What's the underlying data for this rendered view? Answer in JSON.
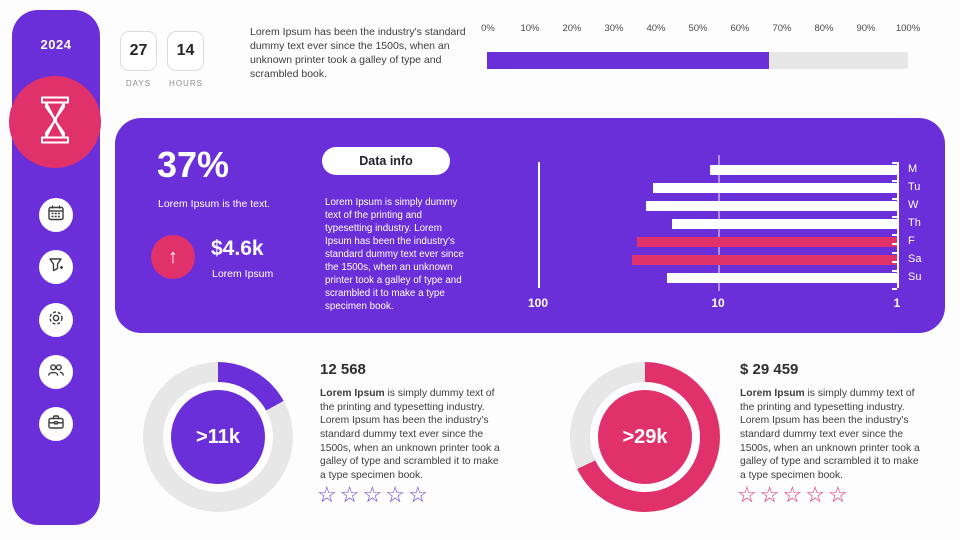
{
  "sidebar": {
    "year": "2024",
    "badge_icon": "hourglass",
    "nav_icons": [
      "calendar",
      "filter",
      "settings",
      "users",
      "briefcase"
    ]
  },
  "countdown": {
    "days_value": "27",
    "days_label": "DAYS",
    "hours_value": "14",
    "hours_label": "HOURS"
  },
  "intro_text": "Lorem Ipsum has been the industry's standard dummy text ever since the 1500s, when an unknown printer took a galley  of type and scrambled book.",
  "panel": {
    "percent": "37%",
    "percent_caption": "Lorem Ipsum is the text.",
    "arrow_icon": "up-arrow",
    "kpi_value": "$4.6k",
    "kpi_caption": "Lorem Ipsum",
    "button_label": "Data info",
    "description": "Lorem Ipsum is simply dummy text of the printing and typesetting industry. Lorem Ipsum has been the industry's standard dummy text ever since the 1500s, when an unknown printer took a galley of type and scrambled it to make a type specimen book."
  },
  "stat_left": {
    "title": "12 568",
    "donut_label": ">11k",
    "lead": "Lorem Ipsum",
    "text": " is simply dummy text of the printing and typesetting industry. Lorem Ipsum has been the industry's standard dummy text ever since the 1500s, when an unknown printer took a galley of type and scrambled it to make a type specimen book.",
    "stars_total": 5,
    "stars_filled": 0
  },
  "stat_right": {
    "title": "$ 29 459",
    "donut_label": ">29k",
    "lead": "Lorem Ipsum",
    "text": " is simply dummy text of the printing and typesetting industry. Lorem Ipsum has been the industry's standard dummy text ever since the 1500s, when an unknown printer took a galley of type and scrambled it to make a type specimen book.",
    "stars_total": 5,
    "stars_filled": 0
  },
  "colors": {
    "purple": "#6B2FD9",
    "pink": "#E0316B",
    "track_gray": "#E7E7E7",
    "star_purple": "#6B46D9",
    "star_pink": "#E0316B"
  },
  "chart_data": [
    {
      "type": "bar",
      "name": "top-progress-bar",
      "orientation": "horizontal",
      "value_pct": 67,
      "range": [
        0,
        100
      ],
      "tick_labels": [
        "0%",
        "10%",
        "20%",
        "30%",
        "40%",
        "50%",
        "60%",
        "70%",
        "80%",
        "90%",
        "100%"
      ],
      "fill_color": "#6B2FD9",
      "track_color": "#E7E7E7"
    },
    {
      "type": "bar",
      "name": "weekday-log-bar-chart",
      "orientation": "horizontal-right-anchored",
      "scale": "log10",
      "axis_labels": [
        "100",
        "10",
        "1"
      ],
      "axis_range": [
        100,
        1
      ],
      "categories": [
        "M",
        "Tu",
        "W",
        "Th",
        "F",
        "Sa",
        "Su"
      ],
      "values": [
        11,
        23,
        25,
        18,
        28,
        30,
        19
      ],
      "bar_colors": [
        "#FFFFFF",
        "#FFFFFF",
        "#FFFFFF",
        "#FFFFFF",
        "#E0316B",
        "#E0316B",
        "#FFFFFF"
      ]
    },
    {
      "type": "pie",
      "name": "donut-left",
      "value_pct": 17,
      "center_label": ">11k",
      "color": "#6B2FD9",
      "track_color": "#E7E7E7",
      "title": "12 568"
    },
    {
      "type": "pie",
      "name": "donut-right",
      "value_pct": 68,
      "center_label": ">29k",
      "color": "#E0316B",
      "track_color": "#E7E7E7",
      "title": "$ 29 459"
    }
  ]
}
